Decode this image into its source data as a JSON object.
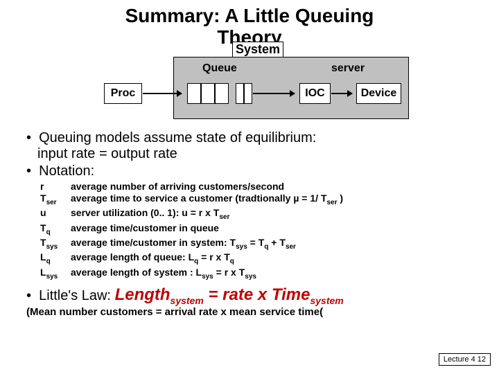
{
  "title_line1": "Summary: A Little Queuing",
  "title_line2": "Theory",
  "diagram": {
    "system_label": "System",
    "queue_label": "Queue",
    "server_label": "server",
    "proc_label": "Proc",
    "ioc_label": "IOC",
    "device_label": "Device",
    "colors": {
      "gray": "#c0c0c0",
      "white": "#ffffff",
      "border": "#000000"
    }
  },
  "bullet1a": "Queuing models assume state of equilibrium:",
  "bullet1b": "input rate = output rate",
  "bullet2": "Notation:",
  "notation": [
    {
      "sym": "r",
      "sub": "",
      "desc": "average number of arriving customers/second"
    },
    {
      "sym": "T",
      "sub": "ser",
      "desc_html": "average time to service a customer (tradtionally µ = 1/ T<span class=\"sub\">ser</span> )"
    },
    {
      "sym": "u",
      "sub": "",
      "desc_html": "server utilization (0.. 1): u = r x T<span class=\"sub\">ser</span>"
    },
    {
      "sym": "T",
      "sub": "q",
      "desc": "average time/customer in queue"
    },
    {
      "sym": "T",
      "sub": "sys",
      "desc_html": "average time/customer in system: T<span class=\"sub\">sys</span> = T<span class=\"sub\">q</span> + T<span class=\"sub\">ser</span>"
    },
    {
      "sym": "L",
      "sub": "q",
      "desc_html": "average length of queue: L<span class=\"sub\">q</span> = r x T<span class=\"sub\">q</span>"
    },
    {
      "sym": "L",
      "sub": "sys",
      "desc_html": "average length of system : L<span class=\"sub\">sys</span> = r x T<span class=\"sub\">sys</span>"
    }
  ],
  "little_prefix": "Little's Law: ",
  "little_eq_pre": "Length",
  "little_eq_sub1": "system",
  "little_eq_mid": " = rate x Time",
  "little_eq_sub2": "system",
  "little_note": "(Mean number customers = arrival rate x mean service time(",
  "footer": "Lecture 4 12"
}
